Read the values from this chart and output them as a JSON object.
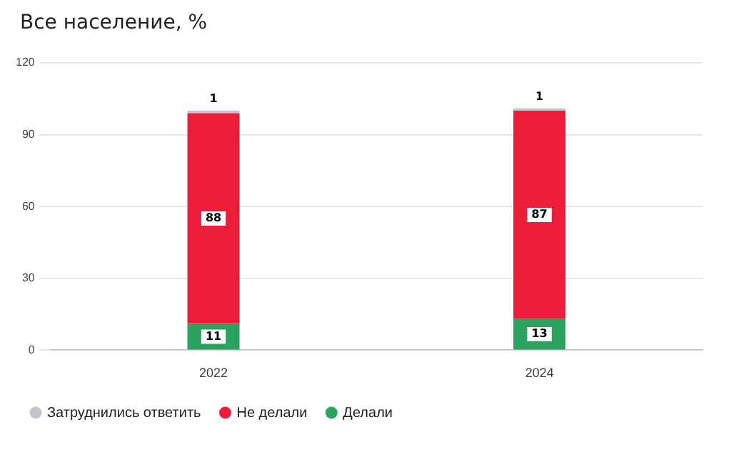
{
  "chart_data": {
    "type": "bar",
    "title": "Все население, %",
    "categories": [
      "2022",
      "2024"
    ],
    "stacked": true,
    "series": [
      {
        "name": "Делали",
        "color": "#2ca25f",
        "values": [
          11,
          13
        ]
      },
      {
        "name": "Не делали",
        "color": "#ee1c3a",
        "values": [
          88,
          87
        ]
      },
      {
        "name": "Затруднились ответить",
        "color": "#c4c4cc",
        "values": [
          1,
          1
        ]
      }
    ],
    "ylim": [
      0,
      120
    ],
    "yticks": [
      0,
      30,
      60,
      90,
      120
    ],
    "grid": "y",
    "legend": "bottom left",
    "data_labels": true
  }
}
